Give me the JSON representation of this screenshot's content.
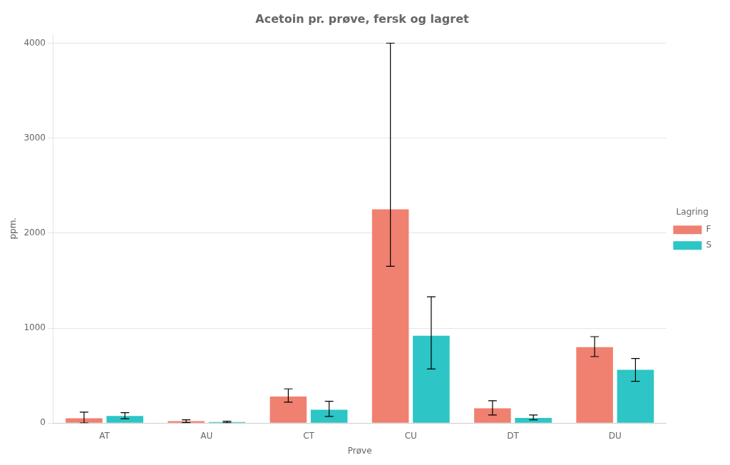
{
  "chart_data": {
    "type": "bar",
    "title": "Acetoin pr. prøve, fersk og lagret",
    "xlabel": "Prøve",
    "ylabel": "ppm.",
    "categories": [
      "AT",
      "AU",
      "CT",
      "CU",
      "DT",
      "DU"
    ],
    "series": [
      {
        "name": "F",
        "color": "#F08070",
        "values": [
          50,
          20,
          280,
          2250,
          155,
          800
        ],
        "error_lo": [
          50,
          15,
          60,
          600,
          70,
          100
        ],
        "error_hi": [
          65,
          15,
          80,
          1750,
          80,
          110
        ]
      },
      {
        "name": "S",
        "color": "#2DC5C5",
        "values": [
          75,
          10,
          140,
          920,
          55,
          560
        ],
        "error_lo": [
          30,
          8,
          70,
          350,
          20,
          120
        ],
        "error_hi": [
          35,
          10,
          90,
          410,
          30,
          120
        ]
      }
    ],
    "legend_title": "Lagring",
    "legend": "right",
    "ylim": [
      0,
      4100
    ],
    "yticks": [
      0,
      1000,
      2000,
      3000,
      4000
    ],
    "grid": true
  }
}
